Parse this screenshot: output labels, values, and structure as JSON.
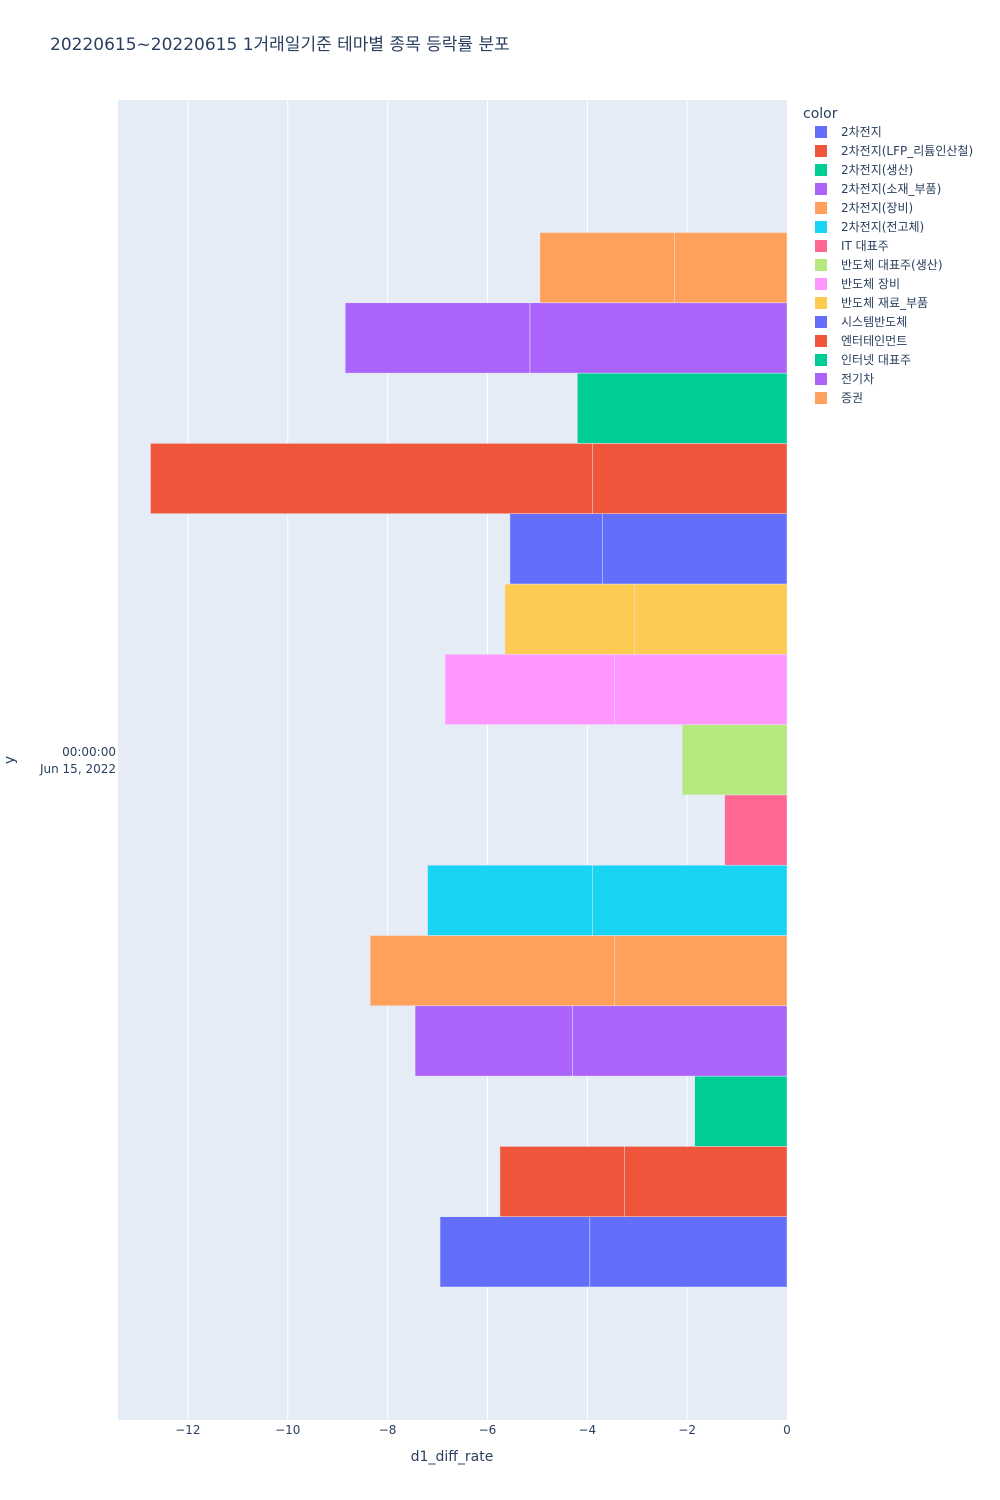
{
  "chart_data": {
    "type": "bar",
    "orientation": "horizontal",
    "stacking": "relative",
    "title": "20220615~20220615 1거래일기준 테마별 종목 등락률 분포",
    "xlabel": "d1_diff_rate",
    "ylabel": "y",
    "xlim": [
      -13.4,
      0
    ],
    "x_ticks": [
      -12,
      -10,
      -8,
      -6,
      -4,
      -2,
      0
    ],
    "x_tick_labels": [
      "−12",
      "−10",
      "−8",
      "−6",
      "−4",
      "−2",
      "0"
    ],
    "y_category": {
      "time": "00:00:00",
      "date": "Jun 15, 2022"
    },
    "legend_title": "color",
    "series": [
      {
        "name": "2차전지",
        "color": "#636efa",
        "values": [
          -3.95,
          -3.0
        ]
      },
      {
        "name": "2차전지(LFP_리튬인산철)",
        "color": "#EF553B",
        "values": [
          -3.25,
          -2.5
        ]
      },
      {
        "name": "2차전지(생산)",
        "color": "#00cc96",
        "values": [
          -1.85
        ]
      },
      {
        "name": "2차전지(소재_부품)",
        "color": "#ab63fa",
        "values": [
          -4.3,
          -3.15
        ]
      },
      {
        "name": "2차전지(장비)",
        "color": "#FFA15A",
        "values": [
          -3.45,
          -4.9
        ]
      },
      {
        "name": "2차전지(전고체)",
        "color": "#19d3f3",
        "values": [
          -3.9,
          -3.3
        ]
      },
      {
        "name": "IT 대표주",
        "color": "#FF6692",
        "values": [
          -1.25
        ]
      },
      {
        "name": "반도체 대표주(생산)",
        "color": "#B6E880",
        "values": [
          -2.1
        ]
      },
      {
        "name": "반도체 장비",
        "color": "#FF97FF",
        "values": [
          -3.45,
          -3.4
        ]
      },
      {
        "name": "반도체 재료_부품",
        "color": "#FECB52",
        "values": [
          -3.05,
          -2.6
        ]
      },
      {
        "name": "시스템반도체",
        "color": "#636efa",
        "values": [
          -3.7,
          -1.85
        ]
      },
      {
        "name": "엔터테인먼트",
        "color": "#EF553B",
        "values": [
          -3.9,
          -8.85
        ]
      },
      {
        "name": "인터넷 대표주",
        "color": "#00cc96",
        "values": [
          -4.2
        ]
      },
      {
        "name": "전기차",
        "color": "#ab63fa",
        "values": [
          -5.15,
          -3.7
        ]
      },
      {
        "name": "증권",
        "color": "#FFA15A",
        "values": [
          -2.25,
          -2.7
        ]
      }
    ]
  }
}
